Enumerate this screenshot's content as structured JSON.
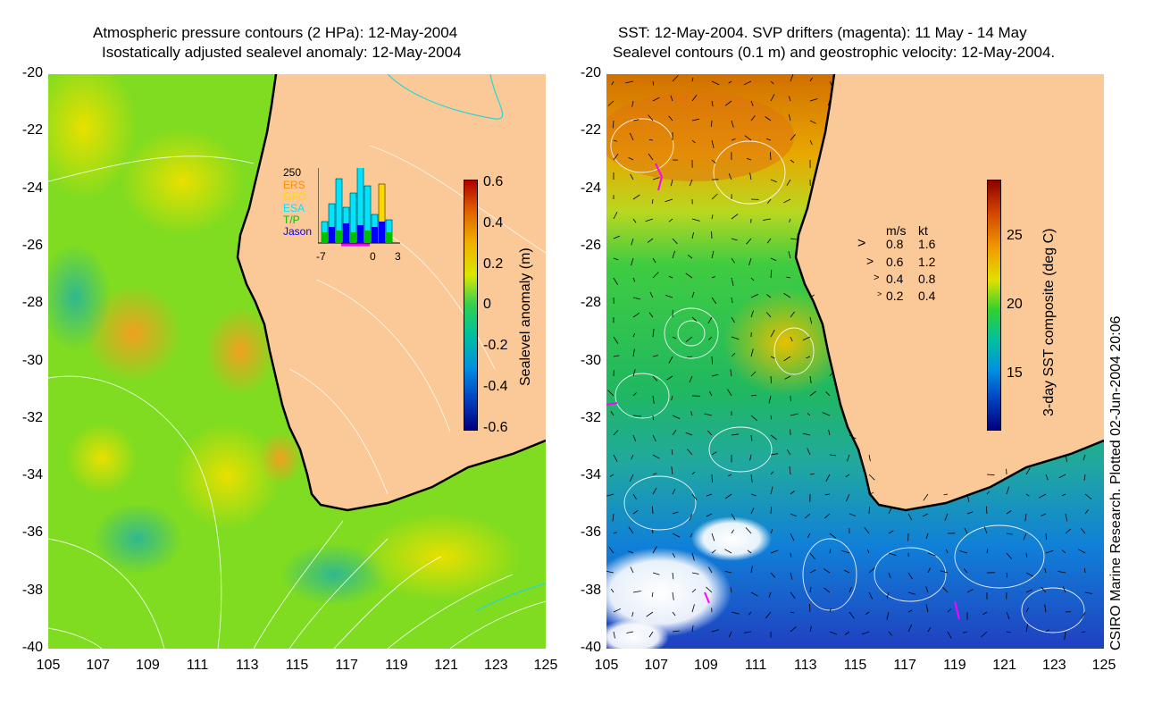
{
  "left_panel": {
    "title_line1": "Atmospheric pressure contours (2 HPa): 12-May-2004",
    "title_line2": "Isostatically adjusted sealevel anomaly: 12-May-2004",
    "colorbar_label": "Sealevel anomaly (m)",
    "colorbar_ticks": [
      "0.6",
      "0.4",
      "0.2",
      "0",
      "-0.2",
      "-0.4",
      "-0.6"
    ],
    "inset": {
      "ymax": "250",
      "legend": [
        "ERS",
        "GFO",
        "ESA",
        "T/P",
        "Jason"
      ],
      "legend_colors": [
        "#ff8c00",
        "#ffd700",
        "#00e5ff",
        "#00c000",
        "#0000ff"
      ],
      "x_ticks": [
        "-7",
        "0",
        "3"
      ]
    }
  },
  "right_panel": {
    "title_line1": "SST: 12-May-2004. SVP drifters (magenta): 11 May - 14 May",
    "title_line2": "Sealevel contours (0.1 m) and geostrophic velocity: 12-May-2004.",
    "colorbar_label": "3-day SST composite (deg C)",
    "colorbar_ticks": [
      "25",
      "20",
      "15"
    ],
    "velocity_legend": {
      "header_ms": "m/s",
      "header_kt": "kt",
      "rows": [
        {
          "ms": "0.8",
          "kt": "1.6"
        },
        {
          "ms": "0.6",
          "kt": "1.2"
        },
        {
          "ms": "0.4",
          "kt": "0.8"
        },
        {
          "ms": "0.2",
          "kt": "0.4"
        }
      ]
    }
  },
  "axes": {
    "y_ticks": [
      "-20",
      "-22",
      "-24",
      "-26",
      "-28",
      "-30",
      "-32",
      "-34",
      "-36",
      "-38",
      "-40"
    ],
    "x_ticks": [
      "105",
      "107",
      "109",
      "111",
      "113",
      "115",
      "117",
      "119",
      "121",
      "123",
      "125"
    ]
  },
  "credit": "CSIRO Marine Research. Plotted 02-Jun-2004 20:06",
  "colors": {
    "land": "#fbc897",
    "ocean_left": "#7fdc20",
    "coast": "#000000"
  }
}
